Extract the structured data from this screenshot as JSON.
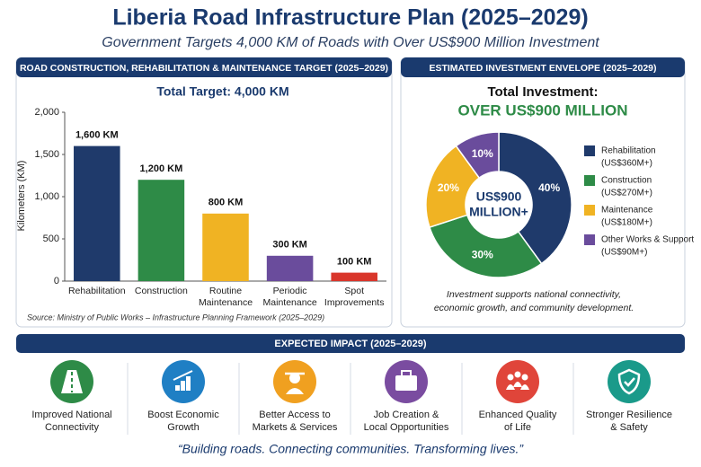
{
  "header": {
    "title": "Liberia Road Infrastructure Plan (2025–2029)",
    "subtitle": "Government Targets 4,000 KM of Roads with Over US$900 Million Investment"
  },
  "chart_data": [
    {
      "type": "bar",
      "title": "ROAD CONSTRUCTION, REHABILITATION & MAINTENANCE TARGET (2025–2029)",
      "subtitle": "Total Target: 4,000 KM",
      "y_label": "Kilometers (KM)",
      "categories": [
        "Rehabilitation",
        "Construction",
        "Routine Maintenance",
        "Periodic Maintenance",
        "Spot Improvements"
      ],
      "values": [
        1600,
        1200,
        800,
        300,
        100
      ],
      "value_labels": [
        "1,600 KM",
        "1,200 KM",
        "800 KM",
        "300 KM",
        "100 KM"
      ],
      "colors": [
        "#1f3a6b",
        "#2e8b47",
        "#f0b323",
        "#6a4c9c",
        "#d9362b"
      ],
      "ylim": [
        0,
        2000
      ],
      "yticks": [
        0,
        500,
        {
          "value": 1000,
          "label": "1,000"
        },
        {
          "value": 1500,
          "label": "1,500"
        },
        {
          "value": 2000,
          "label": "2,000"
        }
      ],
      "source": "Source: Ministry of Public Works – Infrastructure Planning Framework (2025–2029)"
    },
    {
      "type": "pie",
      "title": "ESTIMATED INVESTMENT ENVELOPE (2025–2029)",
      "subtitle": "Total Investment:",
      "headline": "OVER US$900 MILLION",
      "center_label": [
        "US$900",
        "MILLION+"
      ],
      "categories": [
        "Rehabilitation",
        "Construction",
        "Maintenance",
        "Other Works & Support"
      ],
      "legend_details": [
        "(US$360M+)",
        "(US$270M+)",
        "(US$180M+)",
        "(US$90M+)"
      ],
      "values": [
        40,
        30,
        20,
        10
      ],
      "value_labels": [
        "40%",
        "30%",
        "20%",
        "10%"
      ],
      "colors": [
        "#1f3a6b",
        "#2e8b47",
        "#f0b323",
        "#6a4c9c"
      ],
      "note": [
        "Investment supports national connectivity,",
        "economic growth, and community development."
      ]
    }
  ],
  "impact": {
    "title": "EXPECTED IMPACT (2025–2029)",
    "items": [
      {
        "label": [
          "Improved National",
          "Connectivity"
        ],
        "color": "#2e8b47"
      },
      {
        "label": [
          "Boost Economic",
          "Growth"
        ],
        "color": "#1f7fc4"
      },
      {
        "label": [
          "Better Access to",
          "Markets & Services"
        ],
        "color": "#f0a020"
      },
      {
        "label": [
          "Job Creation &",
          "Local Opportunities"
        ],
        "color": "#7a4ca0"
      },
      {
        "label": [
          "Enhanced Quality",
          "of Life"
        ],
        "color": "#e0453a"
      },
      {
        "label": [
          "Stronger Resilience",
          "& Safety"
        ],
        "color": "#1a9a8a"
      }
    ]
  },
  "footer": {
    "quote": "“Building roads. Connecting communities. Transforming lives.”"
  }
}
